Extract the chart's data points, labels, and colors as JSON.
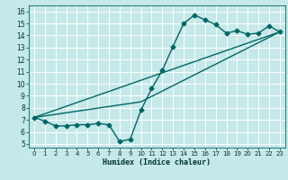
{
  "title": "",
  "xlabel": "Humidex (Indice chaleur)",
  "bg_color": "#c5e8e8",
  "line_color": "#006666",
  "grid_color": "#ffffff",
  "xlim": [
    -0.5,
    23.5
  ],
  "ylim": [
    4.7,
    16.5
  ],
  "xticks": [
    0,
    1,
    2,
    3,
    4,
    5,
    6,
    7,
    8,
    9,
    10,
    11,
    12,
    13,
    14,
    15,
    16,
    17,
    18,
    19,
    20,
    21,
    22,
    23
  ],
  "yticks": [
    5,
    6,
    7,
    8,
    9,
    10,
    11,
    12,
    13,
    14,
    15,
    16
  ],
  "line1_x": [
    0,
    1,
    2,
    3,
    4,
    5,
    6,
    7,
    8,
    9,
    10,
    11,
    12,
    13,
    14,
    15,
    16,
    17,
    18,
    19,
    20,
    21,
    22,
    23
  ],
  "line1_y": [
    7.2,
    6.9,
    6.5,
    6.5,
    6.6,
    6.6,
    6.7,
    6.6,
    5.2,
    5.4,
    7.8,
    9.6,
    11.1,
    13.1,
    15.0,
    15.7,
    15.3,
    14.9,
    14.2,
    14.4,
    14.1,
    14.2,
    14.8,
    14.3
  ],
  "line2_x": [
    0,
    10,
    23
  ],
  "line2_y": [
    7.2,
    8.5,
    14.3
  ],
  "line3_x": [
    0,
    23
  ],
  "line3_y": [
    7.2,
    14.3
  ],
  "marker_size": 2.5,
  "linewidth": 1.0,
  "tick_fontsize": 5.0,
  "xlabel_fontsize": 6.0
}
